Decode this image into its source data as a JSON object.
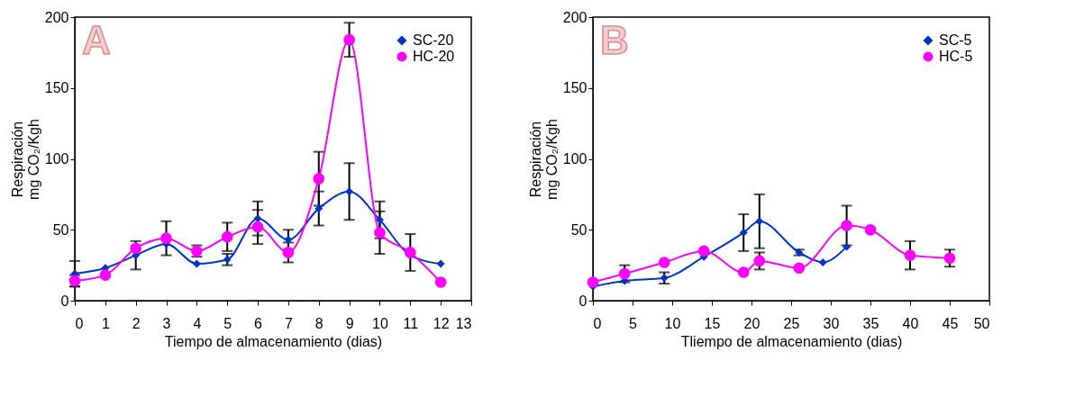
{
  "chart_data": [
    {
      "type": "line",
      "title": "A",
      "xlabel": "Tiempo de almacenamiento (dias)",
      "ylabel": "Respiración\nmg CO₂/Kgh",
      "xlim": [
        0,
        13
      ],
      "xticks": [
        0,
        1,
        2,
        3,
        4,
        5,
        6,
        7,
        8,
        9,
        10,
        11,
        12,
        13
      ],
      "ylim": [
        0,
        200
      ],
      "yticks": [
        0,
        50,
        100,
        150,
        200
      ],
      "grid": false,
      "legend": "top right",
      "series": [
        {
          "name": "SC-20",
          "color": "#0033cc",
          "marker": "diamond",
          "x": [
            0,
            1,
            2,
            3,
            4,
            5,
            6,
            7,
            8,
            9,
            10,
            11,
            12
          ],
          "values": [
            19,
            23,
            32,
            40,
            26,
            29,
            58,
            43,
            65,
            77,
            57,
            32,
            26
          ],
          "errors": [
            9,
            null,
            10,
            null,
            null,
            4,
            12,
            7,
            12,
            20,
            13,
            null,
            null
          ]
        },
        {
          "name": "HC-20",
          "color": "#ff00ff",
          "marker": "circle",
          "x": [
            0,
            1,
            2,
            3,
            4,
            5,
            6,
            7,
            8,
            9,
            10,
            11,
            12
          ],
          "values": [
            14,
            18,
            37,
            44,
            35,
            45,
            52,
            34,
            86,
            184,
            48,
            34,
            13
          ],
          "errors": [
            4,
            null,
            null,
            12,
            4,
            10,
            12,
            7,
            19,
            12,
            15,
            13,
            null
          ]
        }
      ]
    },
    {
      "type": "line",
      "title": "B",
      "xlabel": "Tliempo de almacenamiento (dias)",
      "ylabel": "Respiración\nmg CO₂/Kgh",
      "xlim": [
        0,
        50
      ],
      "xticks": [
        0,
        5,
        10,
        15,
        20,
        25,
        30,
        35,
        40,
        45,
        50
      ],
      "ylim": [
        0,
        200
      ],
      "yticks": [
        0,
        50,
        100,
        150,
        200
      ],
      "grid": false,
      "legend": "top right",
      "series": [
        {
          "name": "SC-5",
          "color": "#0033cc",
          "marker": "diamond",
          "x": [
            0,
            4,
            9,
            14,
            19,
            21,
            26,
            29,
            32
          ],
          "values": [
            10,
            14,
            16,
            31,
            48,
            56,
            34,
            27,
            38
          ],
          "errors": [
            null,
            null,
            4,
            null,
            13,
            19,
            2,
            null,
            null
          ]
        },
        {
          "name": "HC-5",
          "color": "#ff00ff",
          "marker": "circle",
          "x": [
            0,
            4,
            9,
            14,
            19,
            21,
            26,
            32,
            35,
            40,
            45
          ],
          "values": [
            13,
            19,
            27,
            35,
            20,
            28,
            23,
            53,
            50,
            32,
            30
          ],
          "errors": [
            null,
            6,
            null,
            null,
            null,
            6,
            null,
            14,
            null,
            10,
            6
          ]
        }
      ]
    }
  ]
}
